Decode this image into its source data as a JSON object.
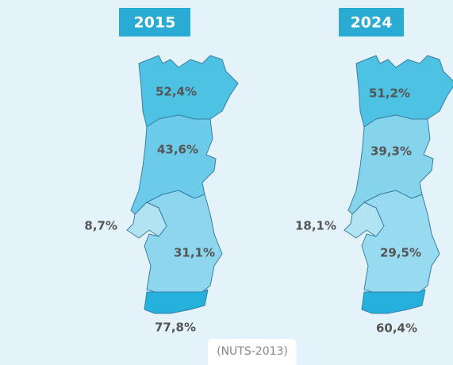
{
  "maps": [
    {
      "title": "2015",
      "regions": [
        {
          "label": "52,4%"
        },
        {
          "label": "43,6%"
        },
        {
          "label": "8,7%"
        },
        {
          "label": "31,1%"
        },
        {
          "label": "77,8%"
        }
      ]
    },
    {
      "title": "2024",
      "regions": [
        {
          "label": "51,2%"
        },
        {
          "label": "39,3%"
        },
        {
          "label": "18,1%"
        },
        {
          "label": "29,5%"
        },
        {
          "label": "60,4%"
        }
      ]
    }
  ],
  "footnote": "(NUTS-2013)"
}
